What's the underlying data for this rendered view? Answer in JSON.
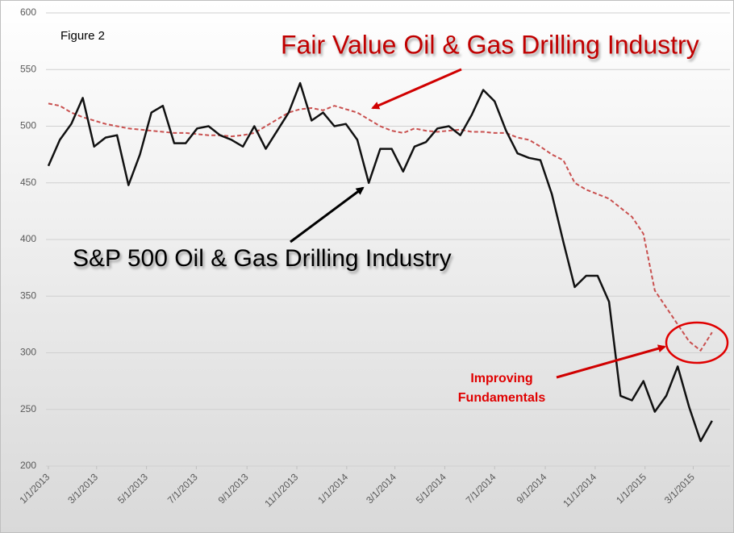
{
  "chart_data": {
    "type": "line",
    "x": [
      "2013-01-01",
      "2013-01-15",
      "2013-01-29",
      "2013-02-12",
      "2013-02-26",
      "2013-03-12",
      "2013-03-26",
      "2013-04-09",
      "2013-04-23",
      "2013-05-07",
      "2013-05-21",
      "2013-06-04",
      "2013-06-18",
      "2013-07-02",
      "2013-07-16",
      "2013-07-30",
      "2013-08-13",
      "2013-08-27",
      "2013-09-10",
      "2013-09-24",
      "2013-10-08",
      "2013-10-22",
      "2013-11-05",
      "2013-11-19",
      "2013-12-03",
      "2013-12-17",
      "2013-12-31",
      "2014-01-14",
      "2014-01-28",
      "2014-02-11",
      "2014-02-25",
      "2014-03-11",
      "2014-03-25",
      "2014-04-08",
      "2014-04-22",
      "2014-05-06",
      "2014-05-20",
      "2014-06-03",
      "2014-06-17",
      "2014-07-01",
      "2014-07-15",
      "2014-07-29",
      "2014-08-12",
      "2014-08-26",
      "2014-09-09",
      "2014-09-23",
      "2014-10-07",
      "2014-10-21",
      "2014-11-04",
      "2014-11-18",
      "2014-12-02",
      "2014-12-16",
      "2014-12-30",
      "2015-01-13",
      "2015-01-27",
      "2015-02-10",
      "2015-02-24",
      "2015-03-10",
      "2015-03-24"
    ],
    "series": [
      {
        "name": "S&P 500 Oil & Gas Drilling Industry",
        "color": "#111111",
        "dashed": false,
        "values": [
          465,
          488,
          502,
          525,
          482,
          490,
          492,
          448,
          475,
          512,
          518,
          485,
          485,
          498,
          500,
          492,
          488,
          482,
          500,
          480,
          496,
          512,
          538,
          505,
          512,
          500,
          502,
          488,
          450,
          480,
          480,
          460,
          482,
          486,
          498,
          500,
          492,
          510,
          532,
          522,
          496,
          476,
          472,
          470,
          440,
          398,
          358,
          368,
          368,
          345,
          262,
          258,
          275,
          248,
          262,
          288,
          252,
          222,
          240
        ]
      },
      {
        "name": "Fair Value Oil & Gas Drilling Industry",
        "color": "#c9504f",
        "dashed": true,
        "values": [
          520,
          518,
          512,
          508,
          505,
          502,
          500,
          498,
          497,
          496,
          495,
          494,
          494,
          493,
          492,
          492,
          491,
          492,
          494,
          500,
          506,
          512,
          515,
          516,
          514,
          518,
          515,
          512,
          506,
          500,
          496,
          494,
          498,
          496,
          495,
          496,
          497,
          495,
          495,
          494,
          494,
          490,
          488,
          482,
          475,
          470,
          450,
          444,
          440,
          436,
          428,
          420,
          405,
          355,
          340,
          325,
          310,
          302,
          318
        ]
      }
    ],
    "xlim": [
      "2013-01-01",
      "2015-04-10"
    ],
    "xticks": [
      {
        "value": "2013-01-01",
        "label": "1/1/2013"
      },
      {
        "value": "2013-03-01",
        "label": "3/1/2013"
      },
      {
        "value": "2013-05-01",
        "label": "5/1/2013"
      },
      {
        "value": "2013-07-01",
        "label": "7/1/2013"
      },
      {
        "value": "2013-09-01",
        "label": "9/1/2013"
      },
      {
        "value": "2013-11-01",
        "label": "11/1/2013"
      },
      {
        "value": "2014-01-01",
        "label": "1/1/2014"
      },
      {
        "value": "2014-03-01",
        "label": "3/1/2014"
      },
      {
        "value": "2014-05-01",
        "label": "5/1/2014"
      },
      {
        "value": "2014-07-01",
        "label": "7/1/2014"
      },
      {
        "value": "2014-09-01",
        "label": "9/1/2014"
      },
      {
        "value": "2014-11-01",
        "label": "11/1/2014"
      },
      {
        "value": "2015-01-01",
        "label": "1/1/2015"
      },
      {
        "value": "2015-03-01",
        "label": "3/1/2015"
      }
    ],
    "ylim": [
      200,
      600
    ],
    "yticks": [
      200,
      250,
      300,
      350,
      400,
      450,
      500,
      550,
      600
    ],
    "grid": true,
    "annotations": [
      "Figure 2",
      "Improving",
      "Fundamentals"
    ]
  }
}
